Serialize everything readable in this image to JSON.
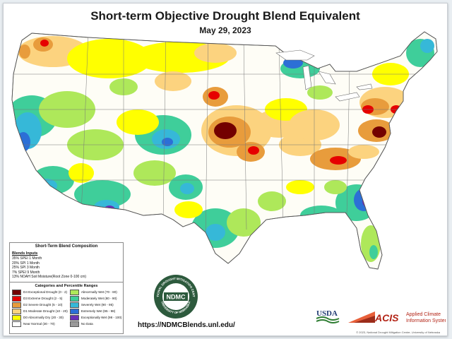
{
  "title": "Short-term Objective Drought Blend Equivalent",
  "date": "May 29, 2023",
  "legend": {
    "heading": "Short-Term Blend Composition",
    "blend_heading": "Blends Inputs",
    "blend_inputs": [
      "35%  SPEI 1 Month",
      "20%  SPI 1 Month",
      "25%  SPI 3 Month",
      "7%  SPEI 9 Month",
      "13% NOAH Soil Moisture(Root Zone 0-100 cm)"
    ],
    "categories_heading": "Categories and Percentile Ranges",
    "categories": [
      {
        "label": "D4 Exceptional Drought (0 - 2)",
        "color": "#730000"
      },
      {
        "label": "Abnormally Wet (70 - 80)",
        "color": "#aee85a"
      },
      {
        "label": "D3 Extreme Drought (2 - 5)",
        "color": "#e60000"
      },
      {
        "label": "Moderately Wet (80 - 90)",
        "color": "#3fce9a"
      },
      {
        "label": "D2 Severe Drought (5 - 10)",
        "color": "#e89c3c"
      },
      {
        "label": "Severely Wet (90 - 95)",
        "color": "#36b8d8"
      },
      {
        "label": "D1 Moderate Drought (10 - 20)",
        "color": "#fcd37f"
      },
      {
        "label": "Extremely Wet (95 - 98)",
        "color": "#2c6fd6"
      },
      {
        "label": "D0 Abnormally Dry (20 - 30)",
        "color": "#ffff00"
      },
      {
        "label": "Exceptionally Wet (98 - 100)",
        "color": "#6a2fb8"
      },
      {
        "label": "Near Normal (30 - 70)",
        "color": "#ffffff"
      },
      {
        "label": "No Data",
        "color": "#9a9a9a"
      }
    ]
  },
  "logo": {
    "seal_text_top": "NATIONAL DROUGHT MITIGATION CENTER",
    "seal_text_bottom": "UNIVERSITY OF NEBRASKA",
    "seal_center": "NDMC"
  },
  "url": "https://NDMCBlends.unl.edu/",
  "usda": "USDA",
  "acis": {
    "mark": "ACIS",
    "line1": "Applied Climate",
    "line2": "Information System"
  },
  "copyright": "© 2023, National Drought Mitigation Center, University of Nebraska"
}
